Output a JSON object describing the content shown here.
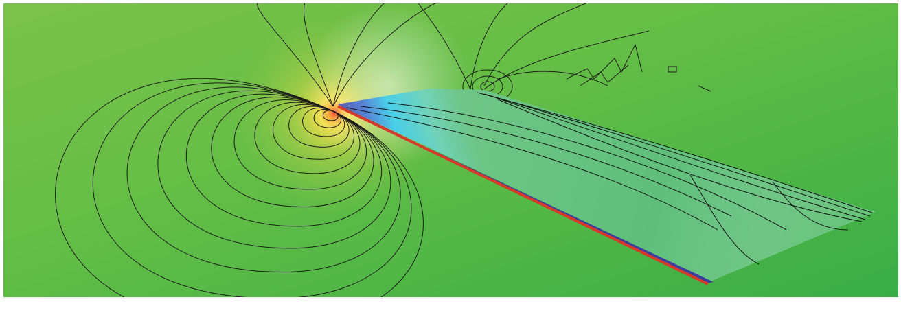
{
  "image": {
    "subject": "cfd-pressure-contours-over-wing",
    "colors": {
      "background_green": "#5cba45",
      "stagnation_red": "#e8301c",
      "stagnation_yellow": "#ffe14a",
      "suction_blue": "#3a4aa8",
      "suction_cyan": "#2ec8e6",
      "trailing_teal": "#5fbf9a",
      "leading_edge_red": "#d83a2a",
      "contour_line": "#1b1b1b"
    }
  },
  "caption": {
    "text": ""
  }
}
